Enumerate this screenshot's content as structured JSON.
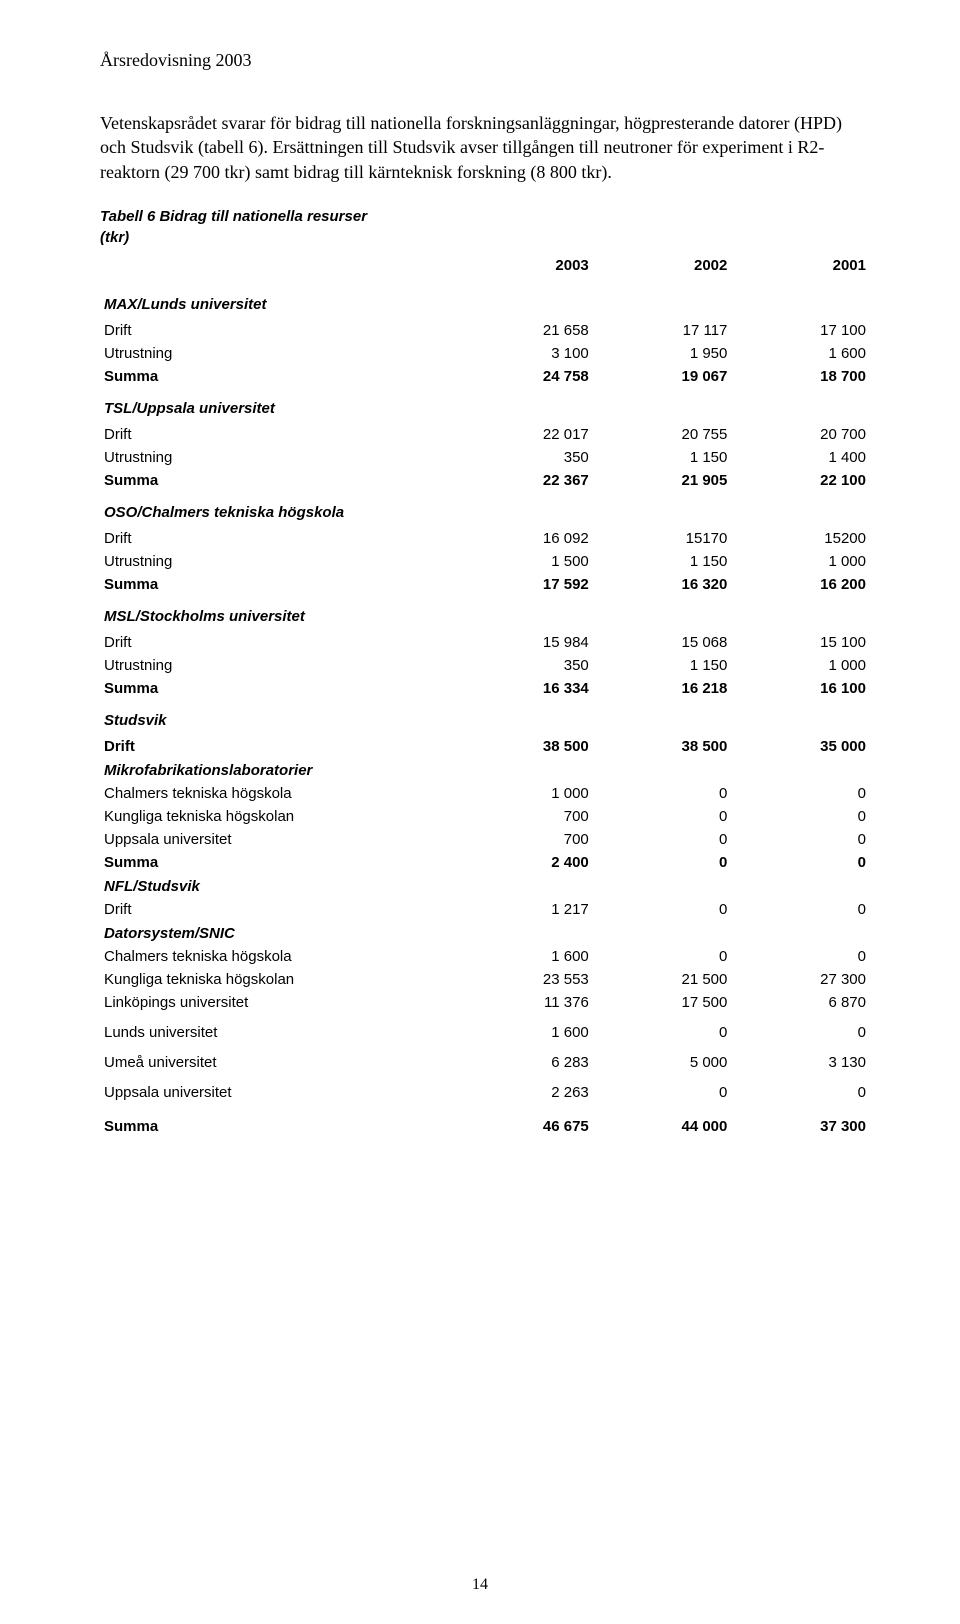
{
  "header": "Årsredovisning 2003",
  "paragraphs": {
    "p1": "Vetenskapsrådet svarar för bidrag till nationella forskningsanläggningar, högpresterande datorer (HPD) och Studsvik (tabell 6). Ersättningen till Studsvik avser tillgången till neutroner för experiment i R2-reaktorn (29 700 tkr) samt bidrag till kärnteknisk forskning (8 800 tkr)."
  },
  "table": {
    "title_line1": "Tabell 6  Bidrag till nationella resurser",
    "title_line2": "(tkr)",
    "years": [
      "2003",
      "2002",
      "2001"
    ],
    "sections": {
      "max": {
        "name": "MAX/Lunds universitet",
        "drift": {
          "label": "Drift",
          "v": [
            "21 658",
            "17 117",
            "17 100"
          ]
        },
        "utrustning": {
          "label": "Utrustning",
          "v": [
            "3 100",
            "1 950",
            "1 600"
          ]
        },
        "summa": {
          "label": "Summa",
          "v": [
            "24 758",
            "19 067",
            "18 700"
          ]
        }
      },
      "tsl": {
        "name": "TSL/Uppsala universitet",
        "drift": {
          "label": "Drift",
          "v": [
            "22 017",
            "20 755",
            "20 700"
          ]
        },
        "utrustning": {
          "label": "Utrustning",
          "v": [
            "350",
            "1 150",
            "1 400"
          ]
        },
        "summa": {
          "label": "Summa",
          "v": [
            "22 367",
            "21 905",
            "22 100"
          ]
        }
      },
      "oso": {
        "name": "OSO/Chalmers tekniska högskola",
        "drift": {
          "label": "Drift",
          "v": [
            "16 092",
            "15170",
            "15200"
          ]
        },
        "utrustning": {
          "label": "Utrustning",
          "v": [
            "1 500",
            "1 150",
            "1 000"
          ]
        },
        "summa": {
          "label": "Summa",
          "v": [
            "17 592",
            "16 320",
            "16 200"
          ]
        }
      },
      "msl": {
        "name": "MSL/Stockholms universitet",
        "drift": {
          "label": "Drift",
          "v": [
            "15 984",
            "15 068",
            "15 100"
          ]
        },
        "utrustning": {
          "label": "Utrustning",
          "v": [
            "350",
            "1 150",
            "1 000"
          ]
        },
        "summa": {
          "label": "Summa",
          "v": [
            "16 334",
            "16 218",
            "16 100"
          ]
        }
      },
      "studsvik": {
        "name": "Studsvik",
        "drift": {
          "label": "Drift",
          "v": [
            "38 500",
            "38 500",
            "35 000"
          ]
        },
        "mikro_header": "Mikrofabrikationslaboratorier",
        "chalmers": {
          "label": "Chalmers tekniska högskola",
          "v": [
            "1 000",
            "0",
            "0"
          ]
        },
        "kth": {
          "label": "Kungliga tekniska högskolan",
          "v": [
            "700",
            "0",
            "0"
          ]
        },
        "uppsala": {
          "label": "Uppsala universitet",
          "v": [
            "700",
            "0",
            "0"
          ]
        },
        "summa": {
          "label": "Summa",
          "v": [
            "2 400",
            "0",
            "0"
          ]
        },
        "nfl_header": "NFL/Studsvik",
        "nfl_drift": {
          "label": "Drift",
          "v": [
            "1 217",
            "0",
            "0"
          ]
        },
        "dator_header": "Datorsystem/SNIC",
        "d_chalmers": {
          "label": "Chalmers tekniska högskola",
          "v": [
            "1 600",
            "0",
            "0"
          ]
        },
        "d_kth": {
          "label": "Kungliga tekniska högskolan",
          "v": [
            "23 553",
            "21 500",
            "27 300"
          ]
        },
        "d_linkoping": {
          "label": "Linköpings universitet",
          "v": [
            "11 376",
            "17 500",
            "6 870"
          ]
        },
        "d_lund": {
          "label": "Lunds universitet",
          "v": [
            "1 600",
            "0",
            "0"
          ]
        },
        "d_umea": {
          "label": "Umeå universitet",
          "v": [
            "6 283",
            "5 000",
            "3 130"
          ]
        },
        "d_uppsala": {
          "label": "Uppsala universitet",
          "v": [
            "2 263",
            "0",
            "0"
          ]
        },
        "d_summa": {
          "label": "Summa",
          "v": [
            "46 675",
            "44 000",
            "37 300"
          ]
        }
      }
    }
  },
  "page_number": "14",
  "colors": {
    "text": "#000000",
    "background": "#ffffff"
  }
}
